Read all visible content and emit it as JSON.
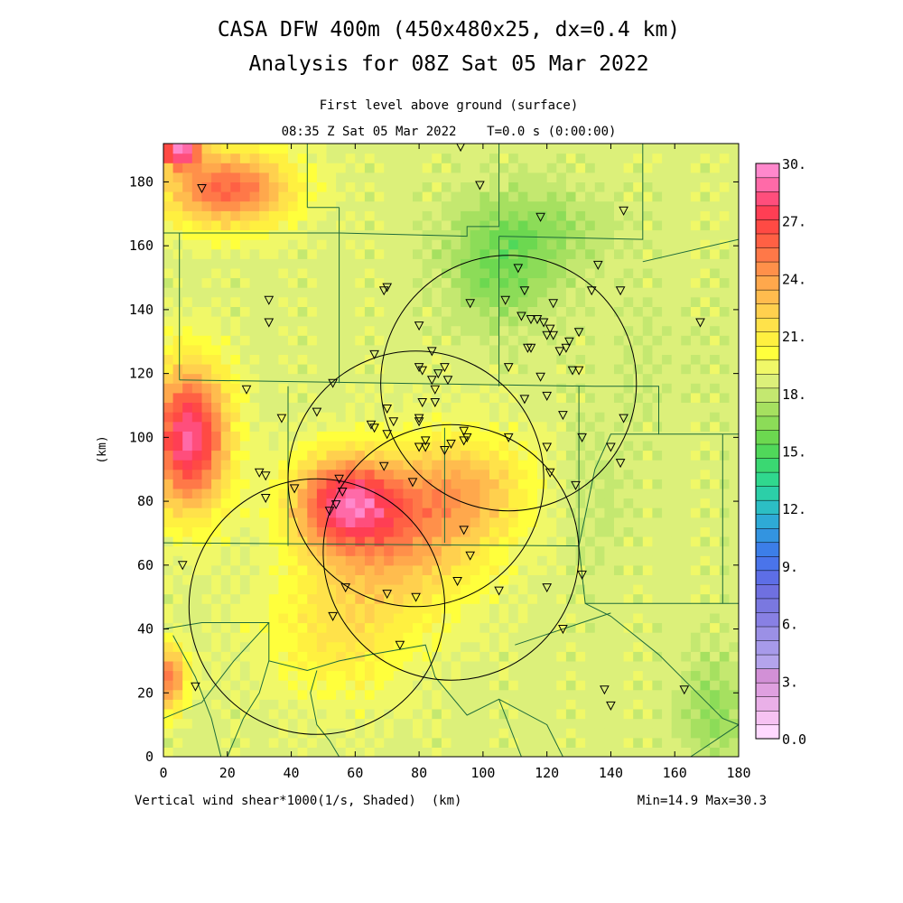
{
  "title_line1": "CASA DFW 400m (450x480x25, dx=0.4 km)",
  "title_line2": "Analysis for 08Z Sat 05 Mar 2022",
  "subtitle_line1": "First level above ground (surface)",
  "subtitle_line2": "08:35 Z Sat 05 Mar 2022    T=0.0 s (0:00:00)",
  "footer_left": "Vertical wind shear*1000(1/s, Shaded)  (km)",
  "footer_right": "Min=14.9 Max=30.3",
  "ylabel": "(km)",
  "colors": {
    "county_lines": "#1e6b3a",
    "radar_rings": "#000000",
    "station_markers": "#000000"
  },
  "chart_data": {
    "type": "heatmap",
    "field": "Vertical wind shear*1000 (1/s)",
    "xlim": [
      0,
      180
    ],
    "ylim": [
      0,
      192
    ],
    "xticks": [
      0,
      20,
      40,
      60,
      80,
      100,
      120,
      140,
      160,
      180
    ],
    "yticks": [
      0,
      20,
      40,
      60,
      80,
      100,
      120,
      140,
      160,
      180
    ],
    "min": 14.9,
    "max": 30.3,
    "colorbar": {
      "ticks": [
        "0.0",
        "3.",
        "6.",
        "9.",
        "12.",
        "15.",
        "18.",
        "21.",
        "24.",
        "27.",
        "30."
      ],
      "colors": [
        "#ffd9ff",
        "#f6c2f2",
        "#eab0e8",
        "#dfa0e0",
        "#d290d6",
        "#b4a4ec",
        "#a79aea",
        "#9b90e6",
        "#8880e4",
        "#7a78e0",
        "#6f70e0",
        "#5d6ee6",
        "#4a74ea",
        "#3c7ee8",
        "#3394e0",
        "#2eaad6",
        "#2cbec4",
        "#2ccfa8",
        "#30d88e",
        "#3ad872",
        "#50d85a",
        "#6cd850",
        "#8cdc58",
        "#a6e060",
        "#c4e870",
        "#dcf07a",
        "#f0f868",
        "#ffff3c",
        "#fff040",
        "#ffe24a",
        "#ffd04e",
        "#ffbc4e",
        "#ffa84c",
        "#ff904a",
        "#ff7848",
        "#ff6044",
        "#ff4a44",
        "#ff3e54",
        "#ff4e7c",
        "#ff6aa8",
        "#ff88cc"
      ]
    },
    "hotspots": [
      {
        "x": 57,
        "y": 80,
        "value": 27.5,
        "sx": 16,
        "sy": 14
      },
      {
        "x": 75,
        "y": 70,
        "value": 24.0,
        "sx": 26,
        "sy": 22
      },
      {
        "x": 95,
        "y": 85,
        "value": 22.8,
        "sx": 20,
        "sy": 16
      },
      {
        "x": 8,
        "y": 100,
        "value": 29.5,
        "sx": 12,
        "sy": 22
      },
      {
        "x": 20,
        "y": 178,
        "value": 26.5,
        "sx": 20,
        "sy": 12
      },
      {
        "x": 5,
        "y": 190,
        "value": 29.5,
        "sx": 6,
        "sy": 5
      },
      {
        "x": 2,
        "y": 25,
        "value": 26.0,
        "sx": 5,
        "sy": 10
      },
      {
        "x": 55,
        "y": 40,
        "value": 21.8,
        "sx": 24,
        "sy": 22
      },
      {
        "x": 105,
        "y": 150,
        "value": 16.8,
        "sx": 16,
        "sy": 16
      },
      {
        "x": 115,
        "y": 165,
        "value": 17.2,
        "sx": 22,
        "sy": 14
      },
      {
        "x": 172,
        "y": 15,
        "value": 17.2,
        "sx": 10,
        "sy": 18
      },
      {
        "x": 150,
        "y": 125,
        "value": 18.8,
        "sx": 22,
        "sy": 24
      },
      {
        "x": 135,
        "y": 80,
        "value": 18.5,
        "sx": 10,
        "sy": 24
      }
    ],
    "radar_rings": [
      {
        "cx": 48,
        "cy": 47,
        "r": 40
      },
      {
        "cx": 79,
        "cy": 87,
        "r": 40
      },
      {
        "cx": 108,
        "cy": 117,
        "r": 40
      },
      {
        "cx": 90,
        "cy": 64,
        "r": 40
      }
    ],
    "stations": [
      [
        12,
        178
      ],
      [
        93,
        191
      ],
      [
        99,
        179
      ],
      [
        118,
        169
      ],
      [
        144,
        171
      ],
      [
        136,
        154
      ],
      [
        134,
        146
      ],
      [
        143,
        146
      ],
      [
        70,
        147
      ],
      [
        69,
        146
      ],
      [
        33,
        143
      ],
      [
        33,
        136
      ],
      [
        96,
        142
      ],
      [
        107,
        143
      ],
      [
        111,
        153
      ],
      [
        113,
        146
      ],
      [
        122,
        142
      ],
      [
        112,
        138
      ],
      [
        115,
        137
      ],
      [
        117,
        137
      ],
      [
        119,
        136
      ],
      [
        121,
        134
      ],
      [
        120,
        132
      ],
      [
        122,
        132
      ],
      [
        127,
        130
      ],
      [
        124,
        127
      ],
      [
        126,
        128
      ],
      [
        130,
        133
      ],
      [
        168,
        136
      ],
      [
        80,
        135
      ],
      [
        66,
        126
      ],
      [
        84,
        127
      ],
      [
        114,
        128
      ],
      [
        115,
        128
      ],
      [
        88,
        122
      ],
      [
        80,
        122
      ],
      [
        81,
        121
      ],
      [
        84,
        118
      ],
      [
        89,
        118
      ],
      [
        86,
        120
      ],
      [
        108,
        122
      ],
      [
        118,
        119
      ],
      [
        128,
        121
      ],
      [
        130,
        121
      ],
      [
        26,
        115
      ],
      [
        53,
        117
      ],
      [
        85,
        115
      ],
      [
        81,
        111
      ],
      [
        85,
        111
      ],
      [
        113,
        112
      ],
      [
        70,
        109
      ],
      [
        80,
        105
      ],
      [
        65,
        104
      ],
      [
        72,
        105
      ],
      [
        66,
        103
      ],
      [
        80,
        106
      ],
      [
        120,
        113
      ],
      [
        125,
        107
      ],
      [
        37,
        106
      ],
      [
        48,
        108
      ],
      [
        94,
        102
      ],
      [
        95,
        100
      ],
      [
        94,
        99
      ],
      [
        82,
        99
      ],
      [
        80,
        97
      ],
      [
        82,
        97
      ],
      [
        88,
        96
      ],
      [
        90,
        98
      ],
      [
        70,
        101
      ],
      [
        108,
        100
      ],
      [
        131,
        100
      ],
      [
        120,
        97
      ],
      [
        144,
        106
      ],
      [
        140,
        97
      ],
      [
        143,
        92
      ],
      [
        30,
        89
      ],
      [
        32,
        88
      ],
      [
        69,
        91
      ],
      [
        78,
        86
      ],
      [
        121,
        89
      ],
      [
        129,
        85
      ],
      [
        55,
        87
      ],
      [
        56,
        83
      ],
      [
        41,
        84
      ],
      [
        32,
        81
      ],
      [
        54,
        79
      ],
      [
        52,
        77
      ],
      [
        94,
        71
      ],
      [
        96,
        63
      ],
      [
        131,
        57
      ],
      [
        6,
        60
      ],
      [
        57,
        53
      ],
      [
        70,
        51
      ],
      [
        79,
        50
      ],
      [
        92,
        55
      ],
      [
        105,
        52
      ],
      [
        120,
        53
      ],
      [
        53,
        44
      ],
      [
        74,
        35
      ],
      [
        125,
        40
      ],
      [
        10,
        22
      ],
      [
        138,
        21
      ],
      [
        140,
        16
      ],
      [
        163,
        21
      ]
    ]
  }
}
